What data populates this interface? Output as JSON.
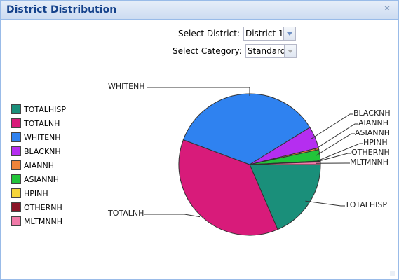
{
  "window": {
    "title": "District Distribution"
  },
  "form": {
    "district_label": "Select District:",
    "district_value": "District 1",
    "category_label": "Select Category:",
    "category_value": "Standard"
  },
  "chart_data": {
    "type": "pie",
    "categories": [
      "TOTALHISP",
      "TOTALNH",
      "WHITENH",
      "BLACKNH",
      "AIANNH",
      "ASIANNH",
      "HPINH",
      "OTHERNH",
      "MLTMNNH"
    ],
    "values": [
      18.5,
      37.2,
      35.5,
      5.0,
      0.4,
      2.6,
      0.1,
      0.1,
      0.6
    ],
    "colors": [
      "#1a8f7a",
      "#d81b7a",
      "#2f82f0",
      "#b52ef0",
      "#f0843a",
      "#22c43a",
      "#f5d53a",
      "#8a1427",
      "#f07aa8"
    ],
    "legend_position": "left"
  }
}
